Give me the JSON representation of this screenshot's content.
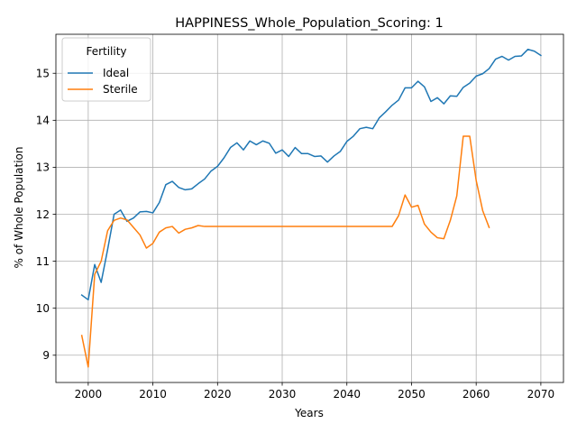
{
  "chart_data": {
    "type": "line",
    "title": "HAPPINESS_Whole_Population_Scoring: 1",
    "xlabel": "Years",
    "ylabel": "% of Whole Population",
    "xlim": [
      1995,
      2073.5
    ],
    "ylim": [
      8.42,
      15.83
    ],
    "xticks": [
      2000,
      2010,
      2020,
      2030,
      2040,
      2050,
      2060,
      2070
    ],
    "yticks": [
      9,
      10,
      11,
      12,
      13,
      14,
      15
    ],
    "grid": true,
    "legend": {
      "title": "Fertility",
      "placement": "top-left"
    },
    "series": [
      {
        "name": "Ideal",
        "color": "#1f77b4",
        "x": [
          1999,
          2000,
          2001,
          2002,
          2003,
          2004,
          2005,
          2006,
          2007,
          2008,
          2009,
          2010,
          2011,
          2012,
          2013,
          2014,
          2015,
          2016,
          2017,
          2018,
          2019,
          2020,
          2021,
          2022,
          2023,
          2024,
          2025,
          2026,
          2027,
          2028,
          2029,
          2030,
          2031,
          2032,
          2033,
          2034,
          2035,
          2036,
          2037,
          2038,
          2039,
          2040,
          2041,
          2042,
          2043,
          2044,
          2045,
          2046,
          2047,
          2048,
          2049,
          2050,
          2051,
          2052,
          2053,
          2054,
          2055,
          2056,
          2057,
          2058,
          2059,
          2060,
          2061,
          2062,
          2063,
          2064,
          2065,
          2066,
          2067,
          2068,
          2069,
          2070
        ],
        "y": [
          10.28,
          10.18,
          10.93,
          10.55,
          11.25,
          12.0,
          12.09,
          11.85,
          11.92,
          12.05,
          12.06,
          12.03,
          12.25,
          12.63,
          12.7,
          12.57,
          12.52,
          12.54,
          12.65,
          12.75,
          12.92,
          13.02,
          13.2,
          13.42,
          13.52,
          13.37,
          13.56,
          13.48,
          13.56,
          13.51,
          13.3,
          13.37,
          13.23,
          13.42,
          13.29,
          13.29,
          13.23,
          13.24,
          13.11,
          13.24,
          13.34,
          13.55,
          13.66,
          13.82,
          13.85,
          13.82,
          14.05,
          14.18,
          14.32,
          14.43,
          14.69,
          14.69,
          14.83,
          14.71,
          14.4,
          14.48,
          14.35,
          14.52,
          14.51,
          14.7,
          14.79,
          14.94,
          14.99,
          15.1,
          15.3,
          15.36,
          15.28,
          15.36,
          15.37,
          15.51,
          15.47,
          15.38
        ]
      },
      {
        "name": "Sterile",
        "color": "#ff7f0e",
        "x": [
          1999,
          2000,
          2001,
          2002,
          2003,
          2004,
          2005,
          2006,
          2007,
          2008,
          2009,
          2010,
          2011,
          2012,
          2013,
          2014,
          2015,
          2016,
          2017,
          2018,
          2019,
          2020,
          2021,
          2022,
          2023,
          2024,
          2025,
          2026,
          2027,
          2028,
          2029,
          2030,
          2031,
          2032,
          2033,
          2034,
          2035,
          2036,
          2037,
          2038,
          2039,
          2040,
          2041,
          2042,
          2043,
          2044,
          2045,
          2046,
          2047,
          2048,
          2049,
          2050,
          2051,
          2052,
          2053,
          2054,
          2055,
          2056,
          2057,
          2058,
          2059,
          2060,
          2061,
          2062
        ],
        "y": [
          9.42,
          8.75,
          10.72,
          11.0,
          11.65,
          11.87,
          11.92,
          11.88,
          11.72,
          11.56,
          11.28,
          11.38,
          11.62,
          11.71,
          11.74,
          11.6,
          11.68,
          11.71,
          11.76,
          11.74,
          11.74,
          11.74,
          11.74,
          11.74,
          11.74,
          11.74,
          11.74,
          11.74,
          11.74,
          11.74,
          11.74,
          11.74,
          11.74,
          11.74,
          11.74,
          11.74,
          11.74,
          11.74,
          11.74,
          11.74,
          11.74,
          11.74,
          11.74,
          11.74,
          11.74,
          11.74,
          11.74,
          11.74,
          11.74,
          11.97,
          12.41,
          12.15,
          12.19,
          11.79,
          11.62,
          11.5,
          11.48,
          11.87,
          12.39,
          13.66,
          13.66,
          12.72,
          12.08,
          11.72
        ]
      }
    ]
  }
}
